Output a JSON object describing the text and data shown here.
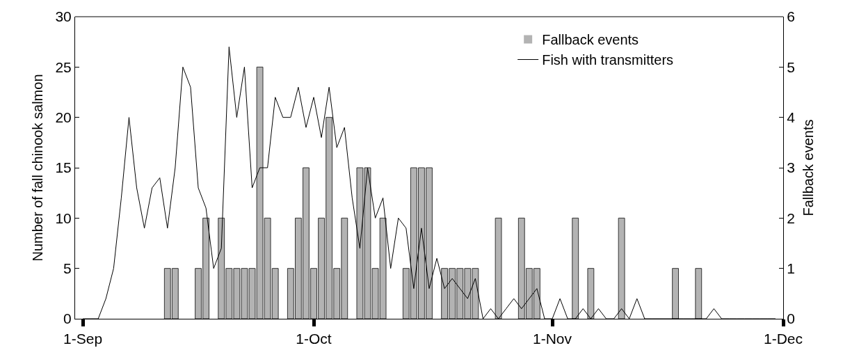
{
  "chart_data": {
    "type": "bar",
    "ylabel": "Number of fall chinook salmon",
    "y2label": "Fallback events",
    "x": [
      "--09-01",
      "--09-02",
      "--09-03",
      "--09-04",
      "--09-05",
      "--09-06",
      "--09-07",
      "--09-08",
      "--09-09",
      "--09-10",
      "--09-11",
      "--09-12",
      "--09-13",
      "--09-14",
      "--09-15",
      "--09-16",
      "--09-17",
      "--09-18",
      "--09-19",
      "--09-20",
      "--09-21",
      "--09-22",
      "--09-23",
      "--09-24",
      "--09-25",
      "--09-26",
      "--09-27",
      "--09-28",
      "--09-29",
      "--09-30",
      "--10-01",
      "--10-02",
      "--10-03",
      "--10-04",
      "--10-05",
      "--10-06",
      "--10-07",
      "--10-08",
      "--10-09",
      "--10-10",
      "--10-11",
      "--10-12",
      "--10-13",
      "--10-14",
      "--10-15",
      "--10-16",
      "--10-17",
      "--10-18",
      "--10-19",
      "--10-20",
      "--10-21",
      "--10-22",
      "--10-23",
      "--10-24",
      "--10-25",
      "--10-26",
      "--10-27",
      "--10-28",
      "--10-29",
      "--10-30",
      "--10-31",
      "--11-01",
      "--11-02",
      "--11-03",
      "--11-04",
      "--11-05",
      "--11-06",
      "--11-07",
      "--11-08",
      "--11-09",
      "--11-10",
      "--11-11",
      "--11-12",
      "--11-13",
      "--11-14",
      "--11-15",
      "--11-16",
      "--11-17",
      "--11-18",
      "--11-19",
      "--11-20",
      "--11-21",
      "--11-22",
      "--11-23",
      "--11-24",
      "--11-25",
      "--11-26",
      "--11-27",
      "--11-28",
      "--11-29",
      "--11-30"
    ],
    "series": [
      {
        "name": "Fallback events",
        "axis": "y2",
        "color": "#b3b3b3",
        "values": [
          0,
          0,
          0,
          0,
          0,
          0,
          0,
          0,
          0,
          0,
          0,
          1,
          1,
          0,
          0,
          1,
          2,
          0,
          2,
          1,
          1,
          1,
          1,
          5,
          2,
          1,
          0,
          1,
          2,
          3,
          1,
          2,
          4,
          1,
          2,
          0,
          3,
          3,
          1,
          2,
          0,
          0,
          1,
          3,
          3,
          3,
          0,
          1,
          1,
          1,
          1,
          1,
          0,
          0,
          2,
          0,
          0,
          2,
          1,
          1,
          0,
          0,
          0,
          0,
          2,
          0,
          1,
          0,
          0,
          0,
          2,
          0,
          0,
          0,
          0,
          0,
          0,
          1,
          0,
          0,
          1,
          0,
          0,
          0,
          0,
          0,
          0,
          0,
          0,
          0,
          0
        ]
      },
      {
        "name": "Fish with transmitters",
        "type": "line",
        "color": "#000000",
        "values": [
          0,
          0,
          0,
          2,
          5,
          12,
          20,
          13,
          9,
          13,
          14,
          9,
          15,
          25,
          23,
          13,
          11,
          5,
          7,
          27,
          20,
          25,
          13,
          15,
          15,
          22,
          20,
          20,
          23,
          19,
          22,
          18,
          23,
          17,
          19,
          12,
          7,
          15,
          10,
          12,
          5,
          10,
          9,
          3,
          9,
          3,
          6,
          3,
          4,
          3,
          2,
          4,
          0,
          1,
          0,
          1,
          2,
          1,
          2,
          3,
          0,
          0,
          2,
          0,
          0,
          1,
          0,
          1,
          0,
          0,
          1,
          0,
          2,
          0,
          0,
          0,
          0,
          0,
          0,
          0,
          0,
          0,
          1,
          0,
          0,
          0,
          0,
          0,
          0,
          0,
          0
        ]
      }
    ],
    "xlim": [
      "--08-31",
      "--12-01"
    ],
    "xticks": [
      {
        "value": "--09-01",
        "label": "1-Sep"
      },
      {
        "value": "--10-01",
        "label": "1-Oct"
      },
      {
        "value": "--11-01",
        "label": "1-Nov"
      },
      {
        "value": "--12-01",
        "label": "1-Dec"
      }
    ],
    "ylim": [
      0,
      30
    ],
    "yticks": [
      0,
      5,
      10,
      15,
      20,
      25,
      30
    ],
    "y2lim": [
      0,
      6
    ],
    "y2ticks": [
      0,
      1,
      2,
      3,
      4,
      5,
      6
    ],
    "grid": false,
    "legend": "top right",
    "marker": "none",
    "line_style": "solid"
  }
}
